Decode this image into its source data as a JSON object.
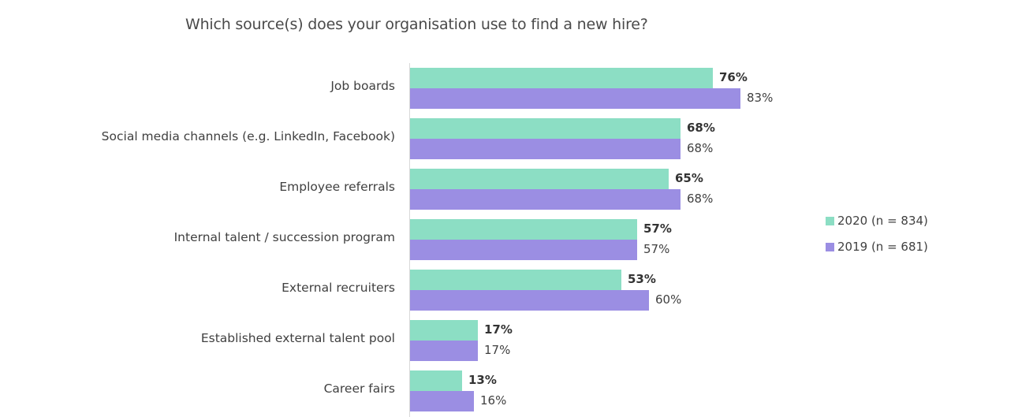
{
  "chart_data": {
    "type": "bar",
    "orientation": "horizontal",
    "title": "Which source(s) does your organisation use to find a new hire?",
    "xlabel": "",
    "ylabel": "",
    "xlim": [
      0,
      100
    ],
    "grid": false,
    "legend_position": "right",
    "categories": [
      "Job boards",
      "Social media channels (e.g. LinkedIn, Facebook)",
      "Employee referrals",
      "Internal talent / succession program",
      "External recruiters",
      "Established external talent pool",
      "Career fairs"
    ],
    "series": [
      {
        "name": "2020 (n = 834)",
        "color": "#8CDEC4",
        "values": [
          76,
          68,
          65,
          57,
          53,
          17,
          13
        ]
      },
      {
        "name": "2019 (n = 681)",
        "color": "#9B8EE3",
        "values": [
          83,
          68,
          68,
          57,
          60,
          17,
          16
        ]
      }
    ]
  },
  "title": "Which source(s) does your organisation use to find a new hire?",
  "labels": {
    "rows": [
      {
        "category": "Job boards",
        "v2020": "76%",
        "v2019": "83%"
      },
      {
        "category": "Social media channels (e.g. LinkedIn, Facebook)",
        "v2020": "68%",
        "v2019": "68%"
      },
      {
        "category": "Employee referrals",
        "v2020": "65%",
        "v2019": "68%"
      },
      {
        "category": "Internal talent / succession program",
        "v2020": "57%",
        "v2019": "57%"
      },
      {
        "category": "External recruiters",
        "v2020": "53%",
        "v2019": "60%"
      },
      {
        "category": "Established external talent pool",
        "v2020": "17%",
        "v2019": "17%"
      },
      {
        "category": "Career fairs",
        "v2020": "13%",
        "v2019": "16%"
      }
    ]
  },
  "legend": {
    "items": [
      {
        "label": "2020 (n = 834)",
        "color": "#8CDEC4"
      },
      {
        "label": "2019 (n = 681)",
        "color": "#9B8EE3"
      }
    ]
  }
}
